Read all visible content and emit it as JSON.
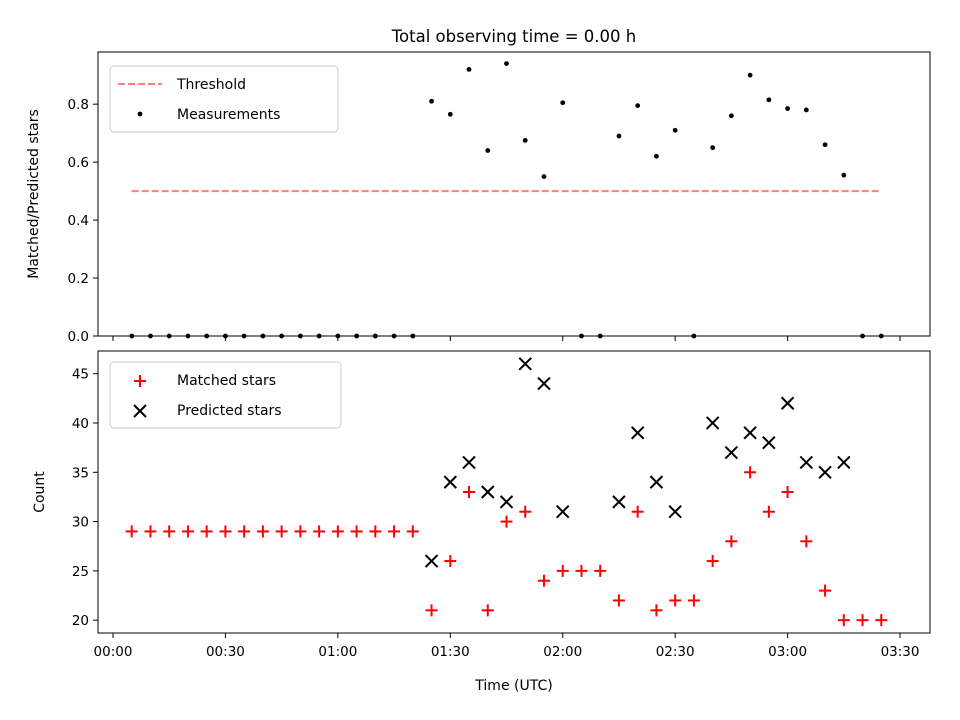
{
  "chart_data": [
    {
      "type": "scatter",
      "title": "Total observing time = 0.00 h",
      "xlabel": "",
      "ylabel": "Matched/Predicted stars",
      "xlim_minutes": [
        -4,
        218
      ],
      "ylim": [
        0,
        0.98
      ],
      "yticks": [
        0.0,
        0.2,
        0.4,
        0.6,
        0.8
      ],
      "legend_position": "top-left",
      "series": [
        {
          "name": "Threshold",
          "kind": "line",
          "style": "dashed",
          "color": "#ff7f7f",
          "x": [
            "00:05",
            "03:25"
          ],
          "y": [
            0.5,
            0.5
          ]
        },
        {
          "name": "Measurements",
          "kind": "scatter",
          "marker": "dot",
          "color": "#000000",
          "x": [
            "00:05",
            "00:10",
            "00:15",
            "00:20",
            "00:25",
            "00:30",
            "00:35",
            "00:40",
            "00:45",
            "00:50",
            "00:55",
            "01:00",
            "01:05",
            "01:10",
            "01:15",
            "01:20",
            "01:25",
            "01:30",
            "01:35",
            "01:40",
            "01:45",
            "01:50",
            "01:55",
            "02:00",
            "02:05",
            "02:10",
            "02:15",
            "02:20",
            "02:25",
            "02:30",
            "02:35",
            "02:40",
            "02:45",
            "02:50",
            "02:55",
            "03:00",
            "03:05",
            "03:10",
            "03:15",
            "03:20",
            "03:25"
          ],
          "y": [
            0,
            0,
            0,
            0,
            0,
            0,
            0,
            0,
            0,
            0,
            0,
            0,
            0,
            0,
            0,
            0,
            0.81,
            0.765,
            0.92,
            0.64,
            0.94,
            0.675,
            0.55,
            0.805,
            0,
            0,
            0.69,
            0.795,
            0.62,
            0.71,
            0,
            0.65,
            0.76,
            0.9,
            0.815,
            0.785,
            0.78,
            0.66,
            0.555,
            0,
            0
          ]
        }
      ]
    },
    {
      "type": "scatter",
      "title": "",
      "xlabel": "Time (UTC)",
      "ylabel": "Count",
      "xlim_minutes": [
        -4,
        218
      ],
      "ylim": [
        18.7,
        47.3
      ],
      "yticks": [
        20,
        25,
        30,
        35,
        40,
        45
      ],
      "xticks": [
        "00:00",
        "00:30",
        "01:00",
        "01:30",
        "02:00",
        "02:30",
        "03:00",
        "03:30"
      ],
      "legend_position": "top-left",
      "series": [
        {
          "name": "Matched stars",
          "kind": "scatter",
          "marker": "plus",
          "color": "#ff0000",
          "x": [
            "00:05",
            "00:10",
            "00:15",
            "00:20",
            "00:25",
            "00:30",
            "00:35",
            "00:40",
            "00:45",
            "00:50",
            "00:55",
            "01:00",
            "01:05",
            "01:10",
            "01:15",
            "01:20",
            "01:25",
            "01:30",
            "01:35",
            "01:40",
            "01:45",
            "01:50",
            "01:55",
            "02:00",
            "02:05",
            "02:10",
            "02:15",
            "02:20",
            "02:25",
            "02:30",
            "02:35",
            "02:40",
            "02:45",
            "02:50",
            "02:55",
            "03:00",
            "03:05",
            "03:10",
            "03:15",
            "03:20",
            "03:25"
          ],
          "y": [
            29,
            29,
            29,
            29,
            29,
            29,
            29,
            29,
            29,
            29,
            29,
            29,
            29,
            29,
            29,
            29,
            21,
            26,
            33,
            21,
            30,
            31,
            24,
            25,
            25,
            25,
            22,
            31,
            21,
            22,
            22,
            26,
            28,
            35,
            31,
            33,
            28,
            23,
            20,
            20,
            20
          ]
        },
        {
          "name": "Predicted stars",
          "kind": "scatter",
          "marker": "x",
          "color": "#000000",
          "x": [
            "01:25",
            "01:30",
            "01:35",
            "01:40",
            "01:45",
            "01:50",
            "01:55",
            "02:00",
            "02:15",
            "02:20",
            "02:25",
            "02:30",
            "02:40",
            "02:45",
            "02:50",
            "02:55",
            "03:00",
            "03:05",
            "03:10",
            "03:15"
          ],
          "y": [
            26,
            34,
            36,
            33,
            32,
            46,
            44,
            31,
            32,
            39,
            34,
            31,
            40,
            37,
            39,
            38,
            42,
            36,
            35,
            36
          ]
        }
      ]
    }
  ]
}
